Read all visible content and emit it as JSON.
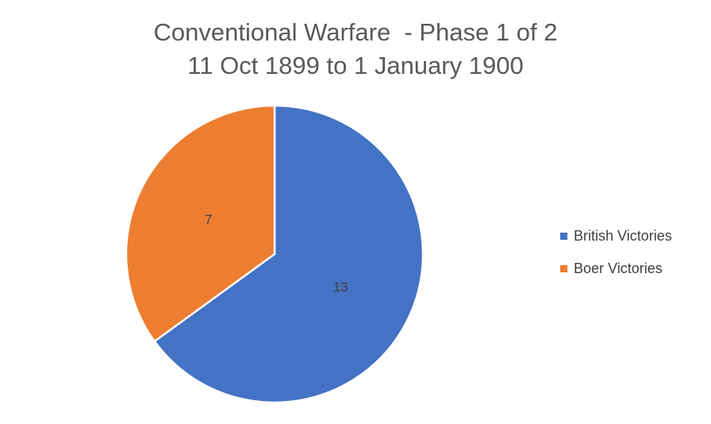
{
  "chart_data": {
    "type": "pie",
    "title_lines": [
      "Conventional Warfare  - Phase 1 of 2",
      "11 Oct 1899 to 1 January 1900"
    ],
    "categories": [
      "British Victories",
      "Boer Victories"
    ],
    "values": [
      13,
      7
    ],
    "colors": [
      "#4472c4",
      "#ed7d31"
    ],
    "data_labels": [
      "13",
      "7"
    ],
    "legend_position": "right"
  }
}
